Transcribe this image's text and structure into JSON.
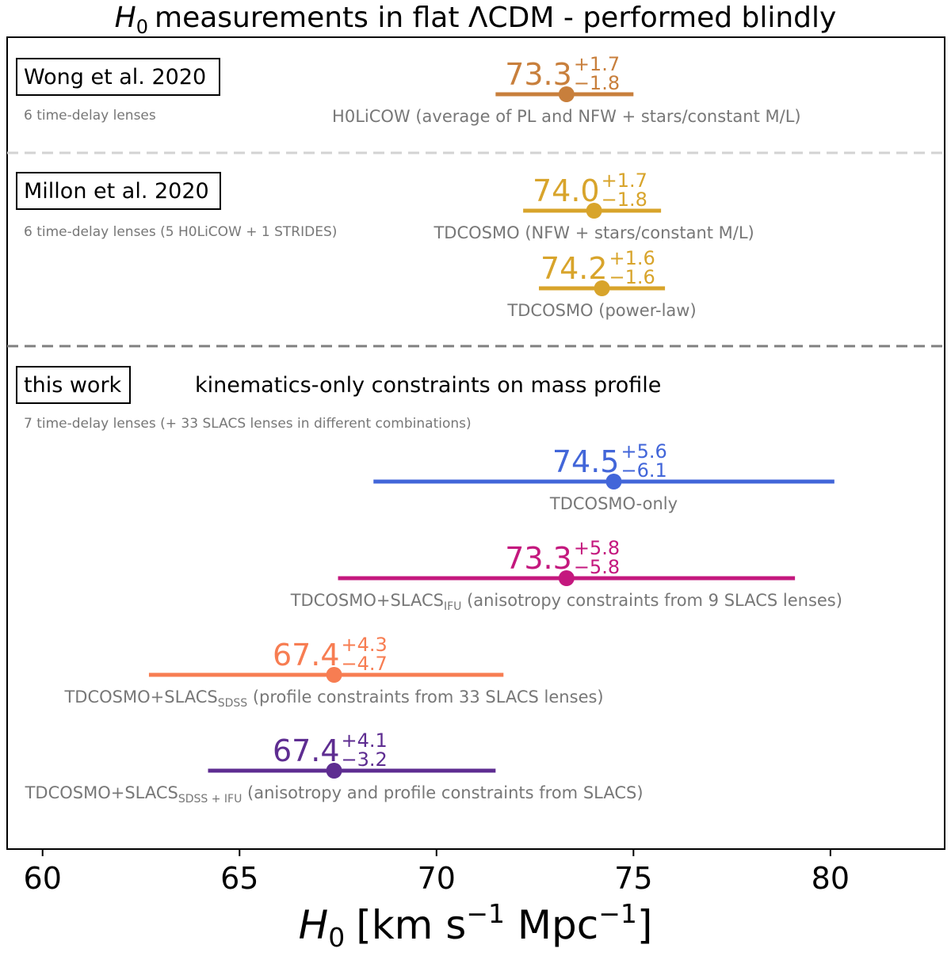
{
  "chart_data": {
    "type": "scatter",
    "title": "measurements in flat ΛCDM - performed blindly",
    "title_prefix": "H",
    "title_sub": "0",
    "xlabel": {
      "symbol": "H",
      "sub": "0",
      "open": "[km s",
      "exp1": "−1",
      "mid": " Mpc",
      "exp2": "−1",
      "close": "]"
    },
    "xlim": [
      59.1,
      82.9
    ],
    "xticks": [
      60,
      65,
      70,
      75,
      80
    ],
    "xtick_labels": [
      "60",
      "65",
      "70",
      "75",
      "80"
    ],
    "grid": false,
    "groups": [
      {
        "label": "Wong et al. 2020",
        "sublabel": "6 time-delay lenses",
        "extra": "",
        "measurements": [
          {
            "value": 73.3,
            "value_label": "73.3",
            "plus": "+1.7",
            "minus": "−1.8",
            "low": 71.5,
            "high": 75.0,
            "desc": "H0LiCOW (average of PL and NFW + stars/constant M/L)",
            "color": "#c87f3c"
          }
        ]
      },
      {
        "label": "Millon et al. 2020",
        "sublabel": "6 time-delay lenses (5 H0LiCOW + 1 STRIDES)",
        "extra": "",
        "measurements": [
          {
            "value": 74.0,
            "value_label": "74.0",
            "plus": "+1.7",
            "minus": "−1.8",
            "low": 72.2,
            "high": 75.7,
            "desc": "TDCOSMO (NFW + stars/constant M/L)",
            "color": "#d8a42b"
          },
          {
            "value": 74.2,
            "value_label": "74.2",
            "plus": "+1.6",
            "minus": "−1.6",
            "low": 72.6,
            "high": 75.8,
            "desc": "TDCOSMO (power-law)",
            "color": "#d8a42b"
          }
        ]
      },
      {
        "label": "this work",
        "sublabel": "7 time-delay lenses (+ 33 SLACS lenses in different combinations)",
        "extra": "kinematics-only constraints on mass profile",
        "measurements": [
          {
            "value": 74.5,
            "value_label": "74.5",
            "plus": "+5.6",
            "minus": "−6.1",
            "low": 68.4,
            "high": 80.1,
            "desc": "TDCOSMO-only",
            "color": "#4266d9"
          },
          {
            "value": 73.3,
            "value_label": "73.3",
            "plus": "+5.8",
            "minus": "−5.8",
            "low": 67.5,
            "high": 79.1,
            "desc": "TDCOSMO+SLACS",
            "desc_sub": "IFU",
            "desc_rest": " (anisotropy constraints from 9 SLACS lenses)",
            "color": "#c4187e"
          },
          {
            "value": 67.4,
            "value_label": "67.4",
            "plus": "+4.3",
            "minus": "−4.7",
            "low": 62.7,
            "high": 71.7,
            "desc": "TDCOSMO+SLACS",
            "desc_sub": "SDSS",
            "desc_rest": " (profile constraints from 33 SLACS lenses)",
            "color": "#f77d52"
          },
          {
            "value": 67.4,
            "value_label": "67.4",
            "plus": "+4.1",
            "minus": "−3.2",
            "low": 64.2,
            "high": 71.5,
            "desc": "TDCOSMO+SLACS",
            "desc_sub": "SDSS + IFU",
            "desc_rest": " (anisotropy and profile constraints from SLACS)",
            "color": "#5e2d91"
          }
        ]
      }
    ]
  }
}
